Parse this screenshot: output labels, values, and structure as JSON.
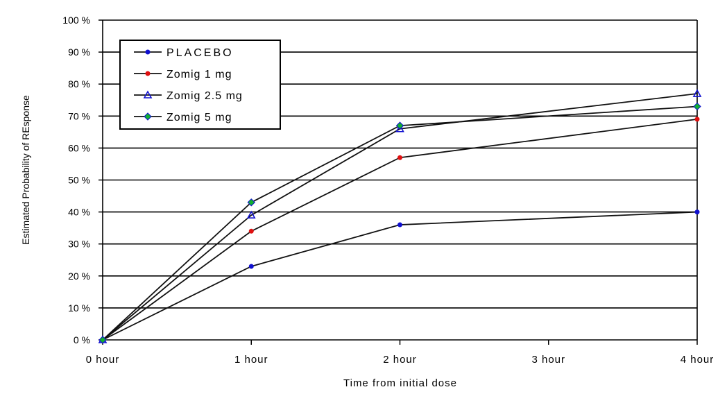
{
  "chart_data": {
    "type": "line",
    "title": "",
    "xlabel": "Time from initial dose",
    "ylabel": "Estimated Probability of REsponse",
    "categories": [
      "0 hour",
      "1 hour",
      "2 hour",
      "3 hour",
      "4 hour"
    ],
    "x": [
      0,
      1,
      2,
      4
    ],
    "ylim": [
      0,
      100
    ],
    "yticks": [
      "0 %",
      "10 %",
      "20 %",
      "30 %",
      "40 %",
      "50 %",
      "60 %",
      "70 %",
      "80 %",
      "90 %",
      "100 %"
    ],
    "grid": true,
    "legend_position": "top-left",
    "series": [
      {
        "name": "PLACEBO",
        "values": [
          0,
          23,
          36,
          40
        ],
        "marker": "circle",
        "color": "#1010d0"
      },
      {
        "name": "Zomig 1 mg",
        "values": [
          0,
          34,
          57,
          69
        ],
        "marker": "circle",
        "color": "#e01010"
      },
      {
        "name": "Zomig 2.5 mg",
        "values": [
          0,
          39,
          66,
          77
        ],
        "marker": "triangle",
        "color": "#1010d0"
      },
      {
        "name": "Zomig 5 mg",
        "values": [
          0,
          43,
          67,
          73
        ],
        "marker": "diamond",
        "color": "#10b030"
      }
    ]
  }
}
